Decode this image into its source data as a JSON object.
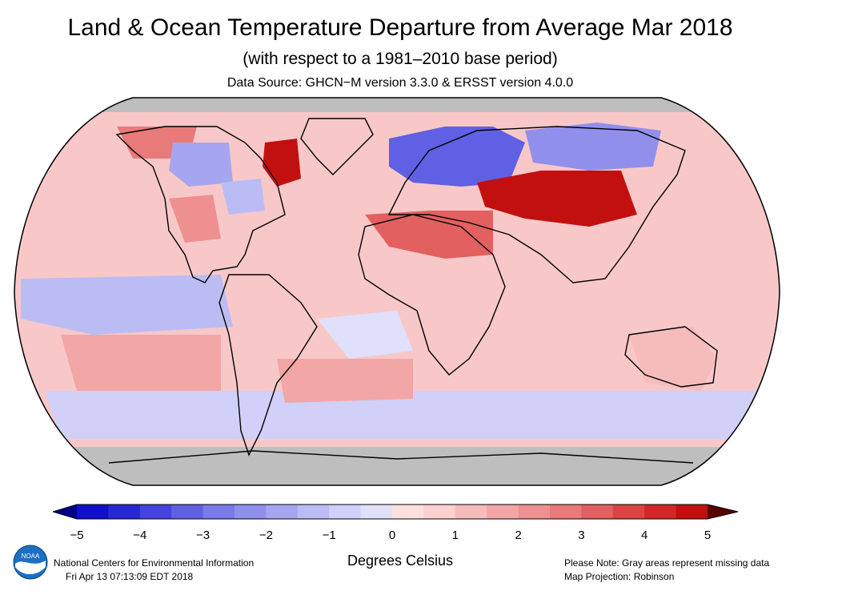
{
  "header": {
    "title": "Land & Ocean Temperature Departure from Average Mar 2018",
    "subtitle": "(with respect to a 1981–2010 base period)",
    "source": "Data Source: GHCN−M version 3.3.0 & ERSST version 4.0.0"
  },
  "map": {
    "projection_label": "Map Projection: Robinson",
    "missing_color": "#bebebe",
    "regions": [
      {
        "name": "Europe / Western Russia",
        "anomaly": -3.5
      },
      {
        "name": "Siberia",
        "anomaly": -2.5
      },
      {
        "name": "Central Asia / Mongolia",
        "anomaly": 4.5
      },
      {
        "name": "North Africa / Middle East",
        "anomaly": 3.0
      },
      {
        "name": "Greenland west / Baffin Bay",
        "anomaly": 4.5
      },
      {
        "name": "Alaska",
        "anomaly": 2.5
      },
      {
        "name": "Central Canada",
        "anomaly": -2.0
      },
      {
        "name": "Eastern United States",
        "anomaly": -1.5
      },
      {
        "name": "Southeast United States / Mexico",
        "anomaly": 2.0
      },
      {
        "name": "Equatorial East Pacific",
        "anomaly": -1.5
      },
      {
        "name": "Equatorial Atlantic",
        "anomaly": -0.5
      },
      {
        "name": "Southern Ocean",
        "anomaly": -1.0
      },
      {
        "name": "South Atlantic",
        "anomaly": 1.5
      },
      {
        "name": "South Pacific",
        "anomaly": 1.5
      },
      {
        "name": "Australia",
        "anomaly": 1.0
      }
    ]
  },
  "colorbar": {
    "min": -5,
    "max": 5,
    "tick_labels": [
      "−5",
      "−4",
      "−3",
      "−2",
      "−1",
      "0",
      "1",
      "2",
      "3",
      "4",
      "5"
    ],
    "colors": [
      "#1010c8",
      "#2828d2",
      "#4444dc",
      "#6060e4",
      "#7a7ae8",
      "#9090ec",
      "#a6a6f0",
      "#bcbcf4",
      "#d0d0f8",
      "#e0e0fa",
      "#fce0e0",
      "#fad0d0",
      "#f6bcbc",
      "#f2a6a6",
      "#ee9090",
      "#e87a7a",
      "#e26060",
      "#da4444",
      "#d02828",
      "#c21010"
    ],
    "under_color": "#000088",
    "over_color": "#5a0000",
    "units_label": "Degrees Celsius"
  },
  "footer": {
    "org": "National Centers for Environmental Information",
    "timestamp": "Fri Apr 13 07:13:09 EDT 2018",
    "note": "Please Note: Gray areas represent missing data",
    "projection": "Map Projection: Robinson",
    "logo_text": "NOAA",
    "logo_icon": "noaa-logo-icon"
  }
}
